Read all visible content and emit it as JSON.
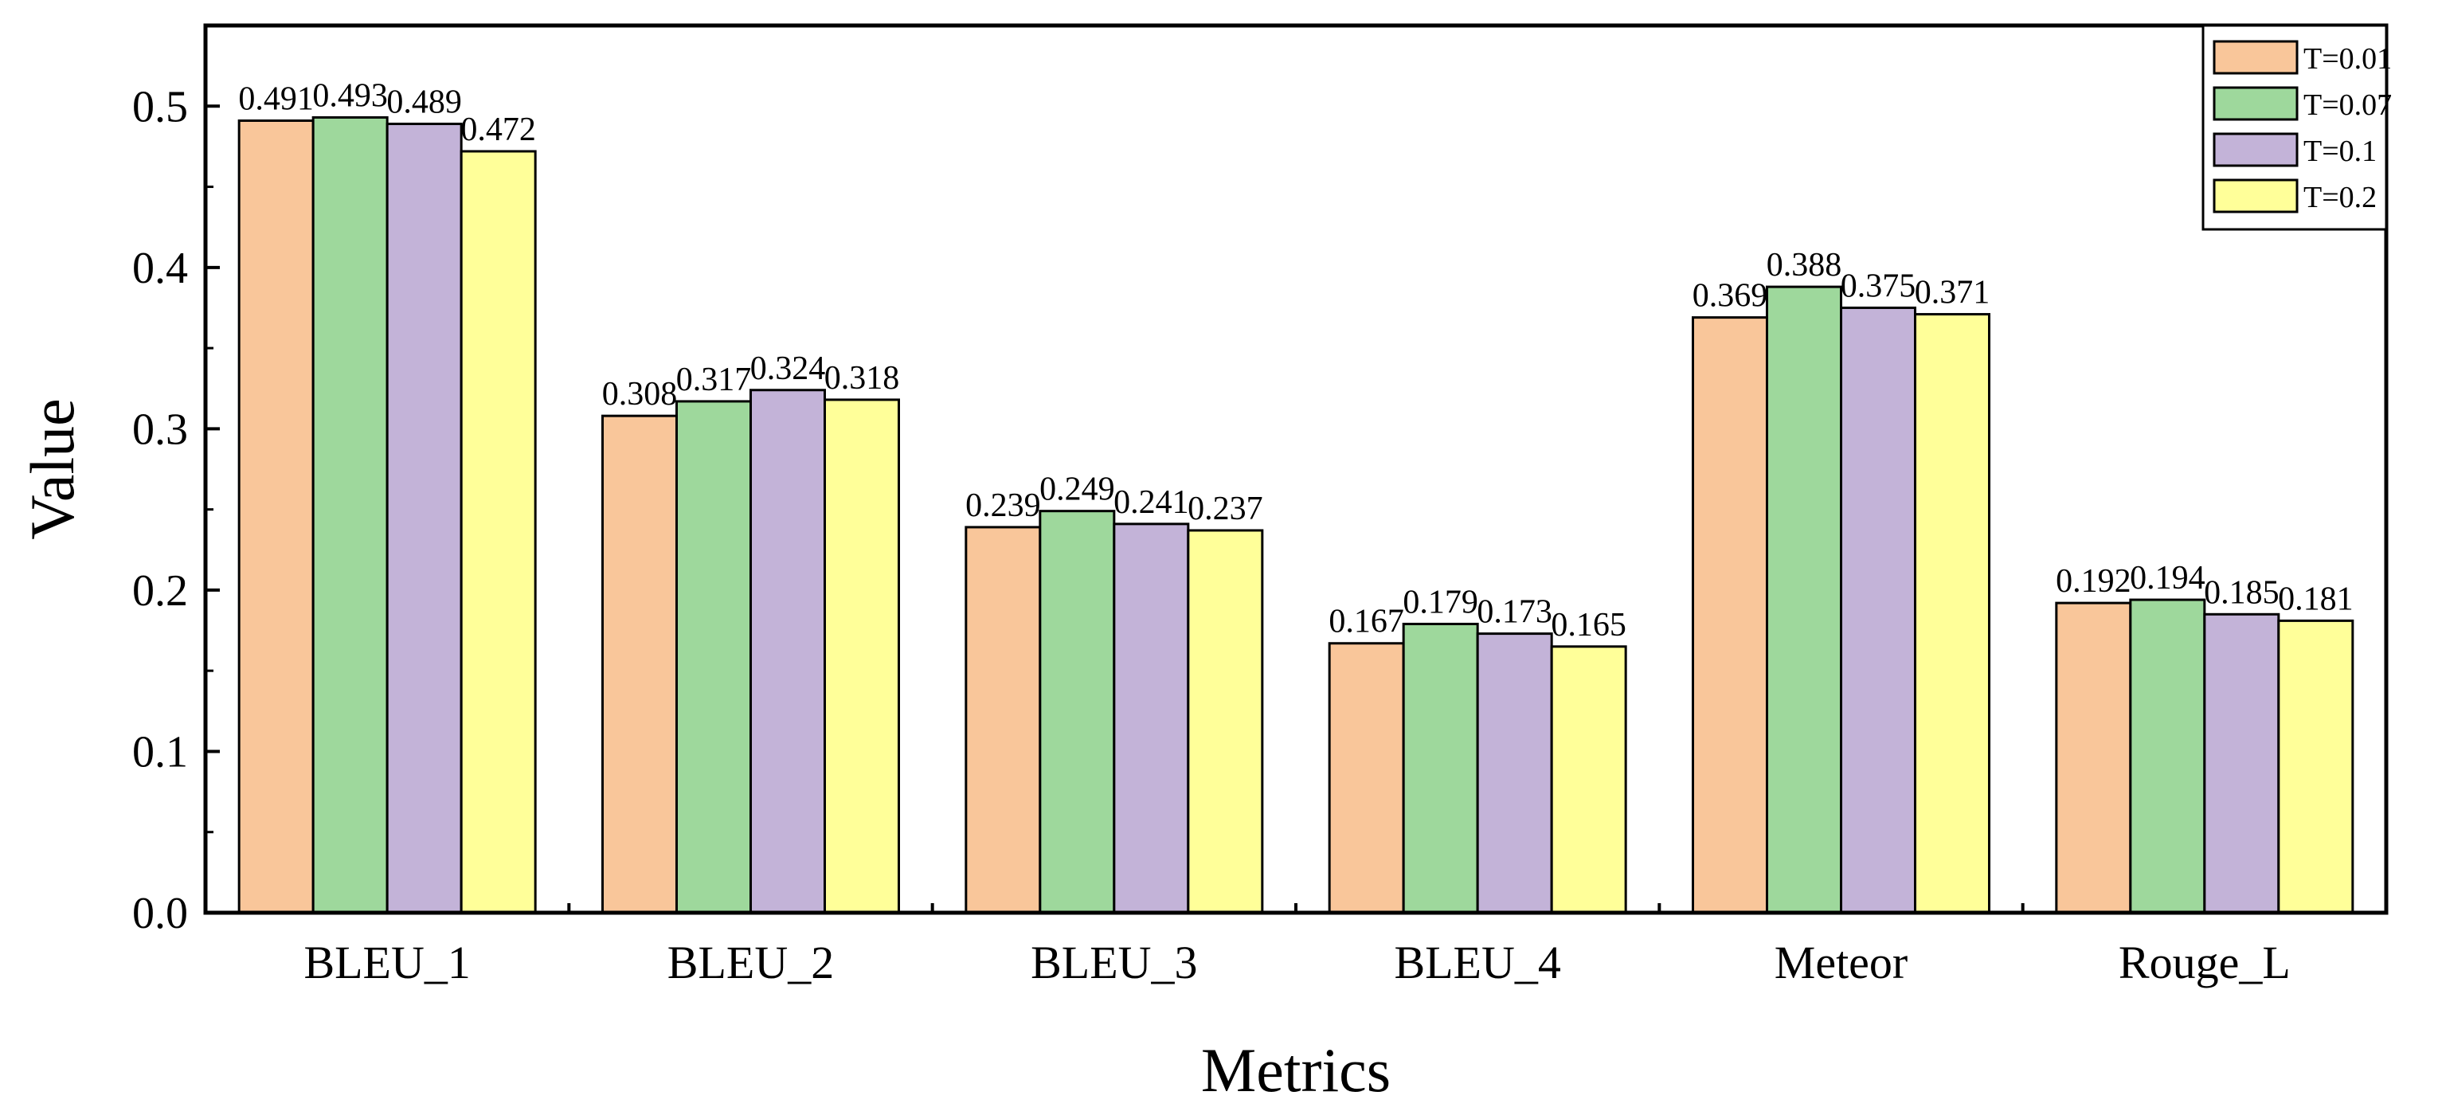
{
  "chart_data": {
    "type": "bar",
    "title": "",
    "xlabel": "Metrics",
    "ylabel": "Value",
    "ylim": [
      0,
      0.55
    ],
    "yticks": [
      "0.0",
      "0.1",
      "0.2",
      "0.3",
      "0.4",
      "0.5"
    ],
    "grid": false,
    "legend_position": "top-right",
    "categories": [
      "BLEU_1",
      "BLEU_2",
      "BLEU_3",
      "BLEU_4",
      "Meteor",
      "Rouge_L"
    ],
    "series": [
      {
        "name": "T=0.01",
        "color": "#F9C69A",
        "values": [
          0.491,
          0.308,
          0.239,
          0.167,
          0.369,
          0.192
        ],
        "labels": [
          "0.491",
          "0.308",
          "0.239",
          "0.167",
          "0.369",
          "0.192"
        ]
      },
      {
        "name": "T=0.07",
        "color": "#9ED89C",
        "values": [
          0.493,
          0.317,
          0.249,
          0.179,
          0.388,
          0.194
        ],
        "labels": [
          "0.493",
          "0.317",
          "0.249",
          "0.179",
          "0.388",
          "0.194"
        ]
      },
      {
        "name": "T=0.1",
        "color": "#C3B3D8",
        "values": [
          0.489,
          0.324,
          0.241,
          0.173,
          0.375,
          0.185
        ],
        "labels": [
          "0.489",
          "0.324",
          "0.241",
          "0.173",
          "0.375",
          "0.185"
        ]
      },
      {
        "name": "T=0.2",
        "color": "#FFFF99",
        "values": [
          0.472,
          0.318,
          0.237,
          0.165,
          0.371,
          0.181
        ],
        "labels": [
          "0.472",
          "0.318",
          "0.237",
          "0.165",
          "0.371",
          "0.181"
        ]
      }
    ]
  }
}
